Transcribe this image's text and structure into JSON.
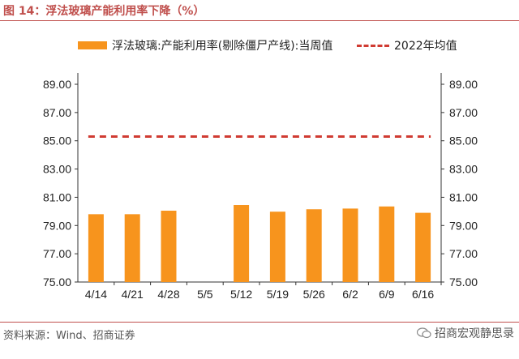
{
  "header": {
    "title": "图 14：浮法玻璃产能利用率下降（%）"
  },
  "footer": {
    "source": "资料来源：Wind、招商证券",
    "watermark": "招商宏观静思录"
  },
  "colors": {
    "bar": "#f7941d",
    "avg_line": "#d03b32",
    "accent": "#c0504d"
  },
  "chart_data": {
    "type": "bar",
    "categories": [
      "4/14",
      "4/21",
      "4/28",
      "5/5",
      "5/12",
      "5/19",
      "5/26",
      "6/2",
      "6/9",
      "6/16"
    ],
    "series": [
      {
        "name": "浮法玻璃:产能利用率(剔除僵尸产线):当周值",
        "type": "bar",
        "values": [
          79.8,
          79.8,
          80.05,
          null,
          80.45,
          79.98,
          80.15,
          80.2,
          80.35,
          79.9
        ]
      },
      {
        "name": "2022年均值",
        "type": "dashed-line",
        "value": 85.3
      }
    ],
    "yticks": [
      "75.00",
      "77.00",
      "79.00",
      "81.00",
      "83.00",
      "85.00",
      "87.00",
      "89.00"
    ],
    "ylim": [
      75,
      89
    ],
    "legend_position": "top",
    "grid": false
  }
}
